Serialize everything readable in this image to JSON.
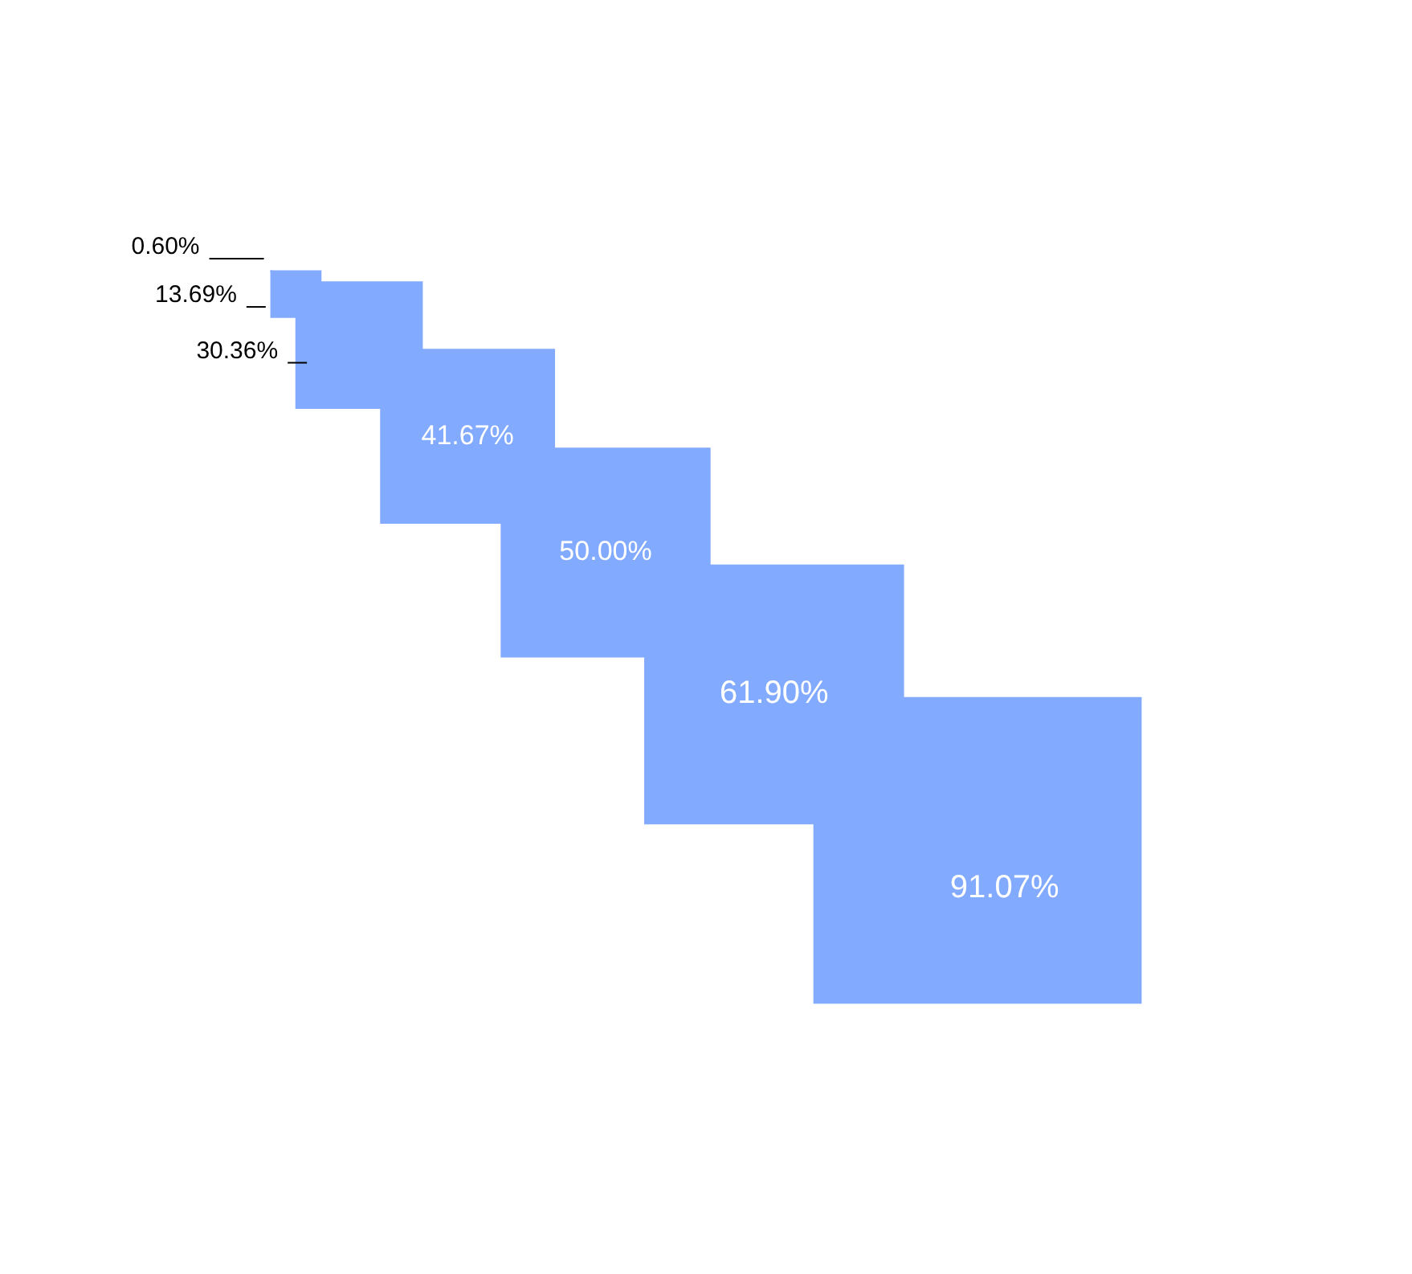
{
  "chart_data": {
    "type": "other",
    "values": [
      0.6,
      13.69,
      30.36,
      41.67,
      50.0,
      61.9,
      91.07
    ],
    "value_labels": [
      "0.60%",
      "13.69%",
      "30.36%",
      "41.67%",
      "50.00%",
      "61.90%",
      "91.07%"
    ],
    "color": "#82aaff"
  }
}
